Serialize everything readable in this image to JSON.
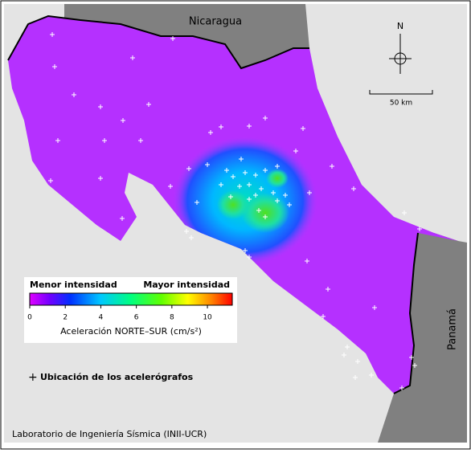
{
  "map": {
    "countries": [
      "Nicaragua",
      "Panamá"
    ],
    "north": "N",
    "scale": "50 km"
  },
  "colorbar": {
    "low_label": "Menor intensidad",
    "high_label": "Mayor intensidad",
    "ticks": [
      0,
      2,
      4,
      6,
      8,
      10
    ],
    "lim": [
      0,
      11.4
    ],
    "label": "Aceleración NORTE–SUR (cm/s²)"
  },
  "legend": {
    "stations": "Ubicación de los acelerógrafos"
  },
  "footer": "Laboratorio de Ingeniería Sísmica (INII-UCR)"
}
